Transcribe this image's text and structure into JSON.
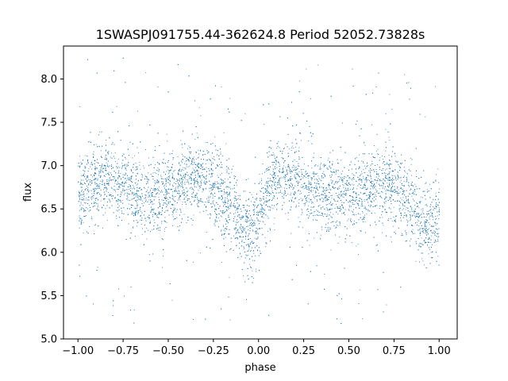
{
  "chart_data": {
    "type": "scatter",
    "title": "1SWASPJ091755.44-362624.8 Period 52052.73828s",
    "xlabel": "phase",
    "ylabel": "flux",
    "xlim": [
      -1.08,
      1.1
    ],
    "ylim": [
      5.0,
      8.38
    ],
    "x_ticks": [
      -1.0,
      -0.75,
      -0.5,
      -0.25,
      0.0,
      0.25,
      0.5,
      0.75,
      1.0
    ],
    "x_tick_labels": [
      "−1.00",
      "−0.75",
      "−0.50",
      "−0.25",
      "0.00",
      "0.25",
      "0.50",
      "0.75",
      "1.00"
    ],
    "y_ticks": [
      5.0,
      5.5,
      6.0,
      6.5,
      7.0,
      7.5,
      8.0
    ],
    "y_tick_labels": [
      "5.0",
      "5.5",
      "6.0",
      "6.5",
      "7.0",
      "7.5",
      "8.0"
    ],
    "grid": false,
    "legend": "none",
    "point_color": "#1f77b4",
    "series_profile": {
      "phase": [
        -1.0,
        -0.9,
        -0.85,
        -0.7,
        -0.6,
        -0.5,
        -0.4,
        -0.3,
        -0.22,
        -0.15,
        -0.1,
        -0.05,
        0.0,
        0.05,
        0.1,
        0.15,
        0.2,
        0.3,
        0.4,
        0.5,
        0.6,
        0.7,
        0.78,
        0.85,
        0.9,
        0.95,
        1.0
      ],
      "flux_mean": [
        6.65,
        6.82,
        6.85,
        6.72,
        6.62,
        6.68,
        6.82,
        6.85,
        6.68,
        6.55,
        6.3,
        6.22,
        6.42,
        6.72,
        6.85,
        6.88,
        6.85,
        6.72,
        6.62,
        6.65,
        6.72,
        6.8,
        6.72,
        6.5,
        6.3,
        6.32,
        6.45
      ],
      "flux_spread": 0.3
    }
  }
}
